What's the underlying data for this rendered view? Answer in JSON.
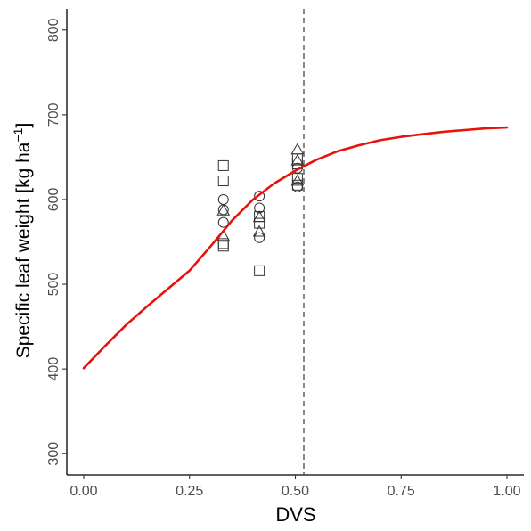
{
  "chart_data": {
    "type": "scatter",
    "title": "",
    "xlabel": "DVS",
    "ylabel_main": "Specific leaf weight [kg ha",
    "ylabel_sup": "−1",
    "ylabel_end": "]",
    "xlim": [
      -0.04,
      1.04
    ],
    "ylim": [
      275,
      825
    ],
    "x_ticks": [
      0.0,
      0.25,
      0.5,
      0.75,
      1.0
    ],
    "x_tick_labels": [
      "0.00",
      "0.25",
      "0.50",
      "0.75",
      "1.00"
    ],
    "y_ticks": [
      300,
      400,
      500,
      600,
      700,
      800
    ],
    "y_tick_labels": [
      "300",
      "400",
      "500",
      "600",
      "700",
      "800"
    ],
    "grid": false,
    "vline": {
      "x": 0.52,
      "style": "dashed",
      "color": "#555555"
    },
    "curve": {
      "color": "#e8120c",
      "points": [
        [
          0.0,
          401
        ],
        [
          0.05,
          427
        ],
        [
          0.1,
          452
        ],
        [
          0.15,
          474
        ],
        [
          0.2,
          495
        ],
        [
          0.25,
          516
        ],
        [
          0.3,
          545
        ],
        [
          0.35,
          575
        ],
        [
          0.4,
          600
        ],
        [
          0.45,
          619
        ],
        [
          0.5,
          634
        ],
        [
          0.55,
          647
        ],
        [
          0.6,
          657
        ],
        [
          0.65,
          664
        ],
        [
          0.7,
          670
        ],
        [
          0.75,
          674
        ],
        [
          0.8,
          677
        ],
        [
          0.85,
          680
        ],
        [
          0.9,
          682
        ],
        [
          0.95,
          684
        ],
        [
          1.0,
          685
        ]
      ]
    },
    "series": [
      {
        "marker": "square",
        "points": [
          [
            0.33,
            640
          ],
          [
            0.33,
            622
          ],
          [
            0.33,
            548
          ],
          [
            0.33,
            545
          ],
          [
            0.415,
            580
          ],
          [
            0.415,
            572
          ],
          [
            0.415,
            516
          ],
          [
            0.505,
            648
          ],
          [
            0.505,
            642
          ],
          [
            0.505,
            625
          ],
          [
            0.505,
            617
          ]
        ]
      },
      {
        "marker": "circle",
        "points": [
          [
            0.33,
            600
          ],
          [
            0.33,
            588
          ],
          [
            0.33,
            573
          ],
          [
            0.415,
            604
          ],
          [
            0.415,
            590
          ],
          [
            0.415,
            555
          ],
          [
            0.505,
            637
          ],
          [
            0.505,
            615
          ]
        ]
      },
      {
        "marker": "triangle",
        "points": [
          [
            0.33,
            587
          ],
          [
            0.33,
            557
          ],
          [
            0.415,
            579
          ],
          [
            0.415,
            562
          ],
          [
            0.505,
            659
          ],
          [
            0.505,
            646
          ],
          [
            0.505,
            622
          ]
        ]
      }
    ]
  }
}
